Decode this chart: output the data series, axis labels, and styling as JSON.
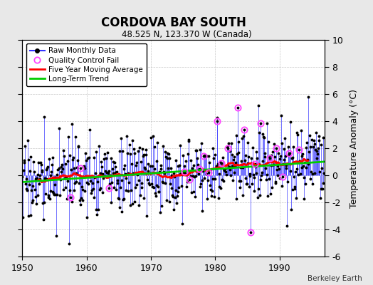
{
  "title": "CORDOVA BAY SOUTH",
  "subtitle": "48.525 N, 123.370 W (Canada)",
  "ylabel": "Temperature Anomaly (°C)",
  "attribution": "Berkeley Earth",
  "xlim": [
    1950,
    1997
  ],
  "ylim": [
    -6,
    10
  ],
  "yticks": [
    -6,
    -4,
    -2,
    0,
    2,
    4,
    6,
    8,
    10
  ],
  "xticks": [
    1950,
    1960,
    1970,
    1980,
    1990
  ],
  "bg_color": "#e8e8e8",
  "plot_bg_color": "#ffffff",
  "raw_color": "#3333ff",
  "dot_color": "#000000",
  "qc_color": "#ff44ff",
  "avg_color": "#ff0000",
  "trend_color": "#00cc00",
  "trend_slope": 0.032,
  "trend_intercept": -0.5,
  "noise_std": 1.4
}
